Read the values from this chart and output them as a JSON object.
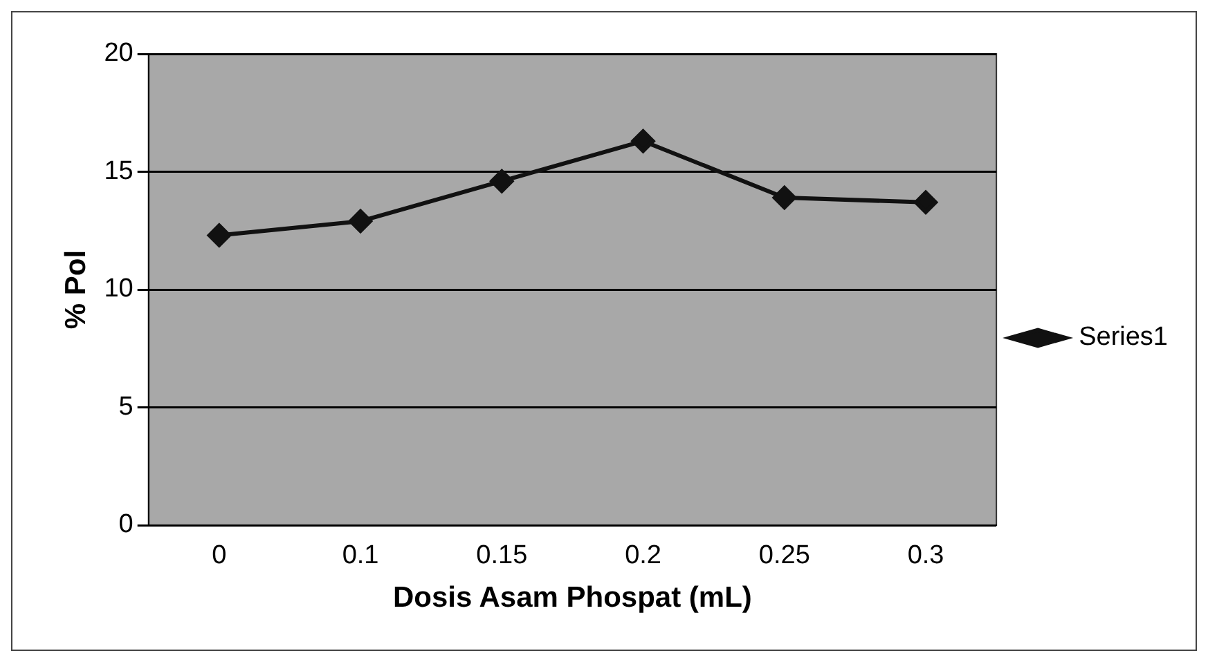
{
  "chart_data": {
    "type": "line",
    "xlabel": "Dosis Asam Phospat (mL)",
    "ylabel": "% Pol",
    "categories": [
      "0",
      "0.1",
      "0.15",
      "0.2",
      "0.25",
      "0.3"
    ],
    "series": [
      {
        "name": "Series1",
        "color": "#111111",
        "values": [
          12.3,
          12.9,
          14.6,
          16.3,
          13.9,
          13.7
        ]
      }
    ],
    "ylim": [
      0,
      20
    ],
    "yticks": [
      0,
      5,
      10,
      15,
      20
    ],
    "grid": "y",
    "legend": "right",
    "marker": "diamond",
    "line_style": "solid"
  }
}
